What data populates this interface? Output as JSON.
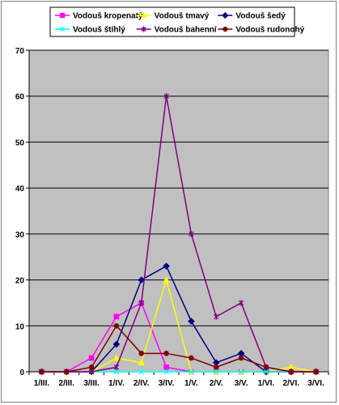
{
  "chart_data": {
    "type": "line",
    "title": "",
    "xlabel": "",
    "ylabel": "",
    "categories": [
      "1/III.",
      "2/III.",
      "3/III.",
      "1/IV.",
      "2/IV.",
      "3/IV.",
      "1/V.",
      "2/V.",
      "3/V.",
      "1/VI.",
      "2/VI.",
      "3/VI."
    ],
    "ylim": [
      0,
      70
    ],
    "yticks": [
      0,
      10,
      20,
      30,
      40,
      50,
      60,
      70
    ],
    "grid": true,
    "legend_position": "top",
    "plot_background": "#c0c0c0",
    "series": [
      {
        "name": "Vodouš kropenatý",
        "color": "#ff00ff",
        "marker": "square",
        "values": [
          0,
          0,
          3,
          12,
          15,
          1,
          0,
          0,
          0,
          0,
          0,
          0
        ]
      },
      {
        "name": "Vodouš tmavý",
        "color": "#ffff00",
        "marker": "triangle",
        "values": [
          0,
          0,
          0,
          3,
          2,
          20,
          0,
          0,
          0,
          0,
          1,
          0
        ]
      },
      {
        "name": "Vodouš šedý",
        "color": "#000080",
        "marker": "diamond",
        "values": [
          0,
          0,
          0,
          6,
          20,
          23,
          11,
          2,
          4,
          0,
          0,
          0
        ]
      },
      {
        "name": "Vodouš štíhlý",
        "color": "#00ffff",
        "marker": "x",
        "values": [
          0,
          0,
          0,
          0,
          0,
          0,
          0,
          0,
          0,
          0,
          0,
          0
        ]
      },
      {
        "name": "Vodouš bahenní",
        "color": "#800080",
        "marker": "star",
        "values": [
          0,
          0,
          0,
          1,
          15,
          60,
          30,
          12,
          15,
          1,
          0,
          0
        ]
      },
      {
        "name": "Vodouš rudonohý",
        "color": "#800000",
        "marker": "circle",
        "values": [
          0,
          0,
          1,
          10,
          4,
          4,
          3,
          1,
          3,
          1,
          0,
          0
        ]
      }
    ]
  }
}
